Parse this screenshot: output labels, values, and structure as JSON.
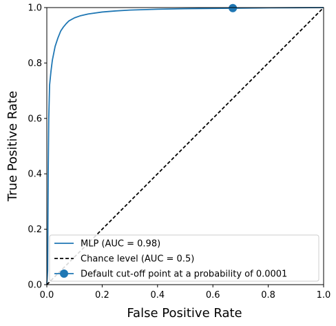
{
  "chart_data": {
    "type": "line",
    "xlabel": "False Positive Rate",
    "ylabel": "True Positive Rate",
    "xlim": [
      0.0,
      1.0
    ],
    "ylim": [
      0.0,
      1.0
    ],
    "x_ticks": [
      "0.0",
      "0.2",
      "0.4",
      "0.6",
      "0.8",
      "1.0"
    ],
    "y_ticks": [
      "0.0",
      "0.2",
      "0.4",
      "0.6",
      "0.8",
      "1.0"
    ],
    "grid": false,
    "legend_position": "bottom",
    "series": [
      {
        "name": "MLP (AUC = 0.98)",
        "style": "solid",
        "color": "#1f77b4",
        "x": [
          0.0,
          0.003,
          0.005,
          0.007,
          0.01,
          0.015,
          0.02,
          0.03,
          0.04,
          0.05,
          0.06,
          0.07,
          0.08,
          0.1,
          0.12,
          0.15,
          0.2,
          0.25,
          0.3,
          0.4,
          0.5,
          0.6,
          0.7,
          0.8,
          0.9,
          1.0
        ],
        "y": [
          0.0,
          0.05,
          0.4,
          0.6,
          0.72,
          0.77,
          0.81,
          0.86,
          0.89,
          0.915,
          0.93,
          0.942,
          0.952,
          0.963,
          0.97,
          0.977,
          0.984,
          0.988,
          0.991,
          0.994,
          0.996,
          0.997,
          0.998,
          0.999,
          0.9995,
          1.0
        ]
      },
      {
        "name": "Chance level (AUC = 0.5)",
        "style": "dashed",
        "color": "#000000",
        "x": [
          0.0,
          1.0
        ],
        "y": [
          0.0,
          1.0
        ]
      }
    ],
    "marker": {
      "name": "Default cut-off point at a probability of 0.0001",
      "x": 0.672,
      "y": 0.998,
      "color": "#1f77b4"
    }
  }
}
